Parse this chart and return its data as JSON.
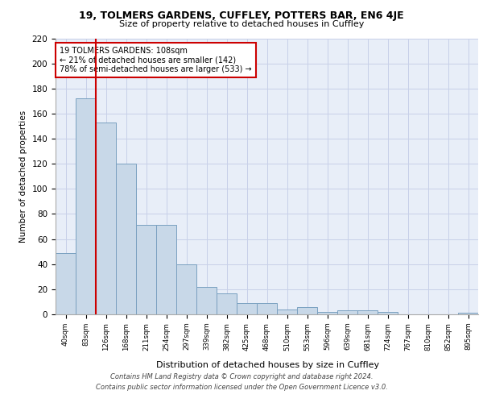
{
  "title1": "19, TOLMERS GARDENS, CUFFLEY, POTTERS BAR, EN6 4JE",
  "title2": "Size of property relative to detached houses in Cuffley",
  "xlabel": "Distribution of detached houses by size in Cuffley",
  "ylabel": "Number of detached properties",
  "categories": [
    "40sqm",
    "83sqm",
    "126sqm",
    "168sqm",
    "211sqm",
    "254sqm",
    "297sqm",
    "339sqm",
    "382sqm",
    "425sqm",
    "468sqm",
    "510sqm",
    "553sqm",
    "596sqm",
    "639sqm",
    "681sqm",
    "724sqm",
    "767sqm",
    "810sqm",
    "852sqm",
    "895sqm"
  ],
  "values": [
    49,
    172,
    153,
    120,
    71,
    71,
    40,
    22,
    17,
    9,
    9,
    4,
    6,
    2,
    3,
    3,
    2,
    0,
    0,
    0,
    1
  ],
  "bar_color": "#c8d8e8",
  "bar_edge_color": "#7aa0c0",
  "background_color": "#e8eef8",
  "grid_color": "#c8d0e8",
  "annotation_text": "19 TOLMERS GARDENS: 108sqm\n← 21% of detached houses are smaller (142)\n78% of semi-detached houses are larger (533) →",
  "annotation_box_color": "#ffffff",
  "annotation_box_edge": "#cc0000",
  "vline_color": "#cc0000",
  "vline_x": 1.5,
  "ylim": [
    0,
    220
  ],
  "yticks": [
    0,
    20,
    40,
    60,
    80,
    100,
    120,
    140,
    160,
    180,
    200,
    220
  ],
  "footer1": "Contains HM Land Registry data © Crown copyright and database right 2024.",
  "footer2": "Contains public sector information licensed under the Open Government Licence v3.0."
}
